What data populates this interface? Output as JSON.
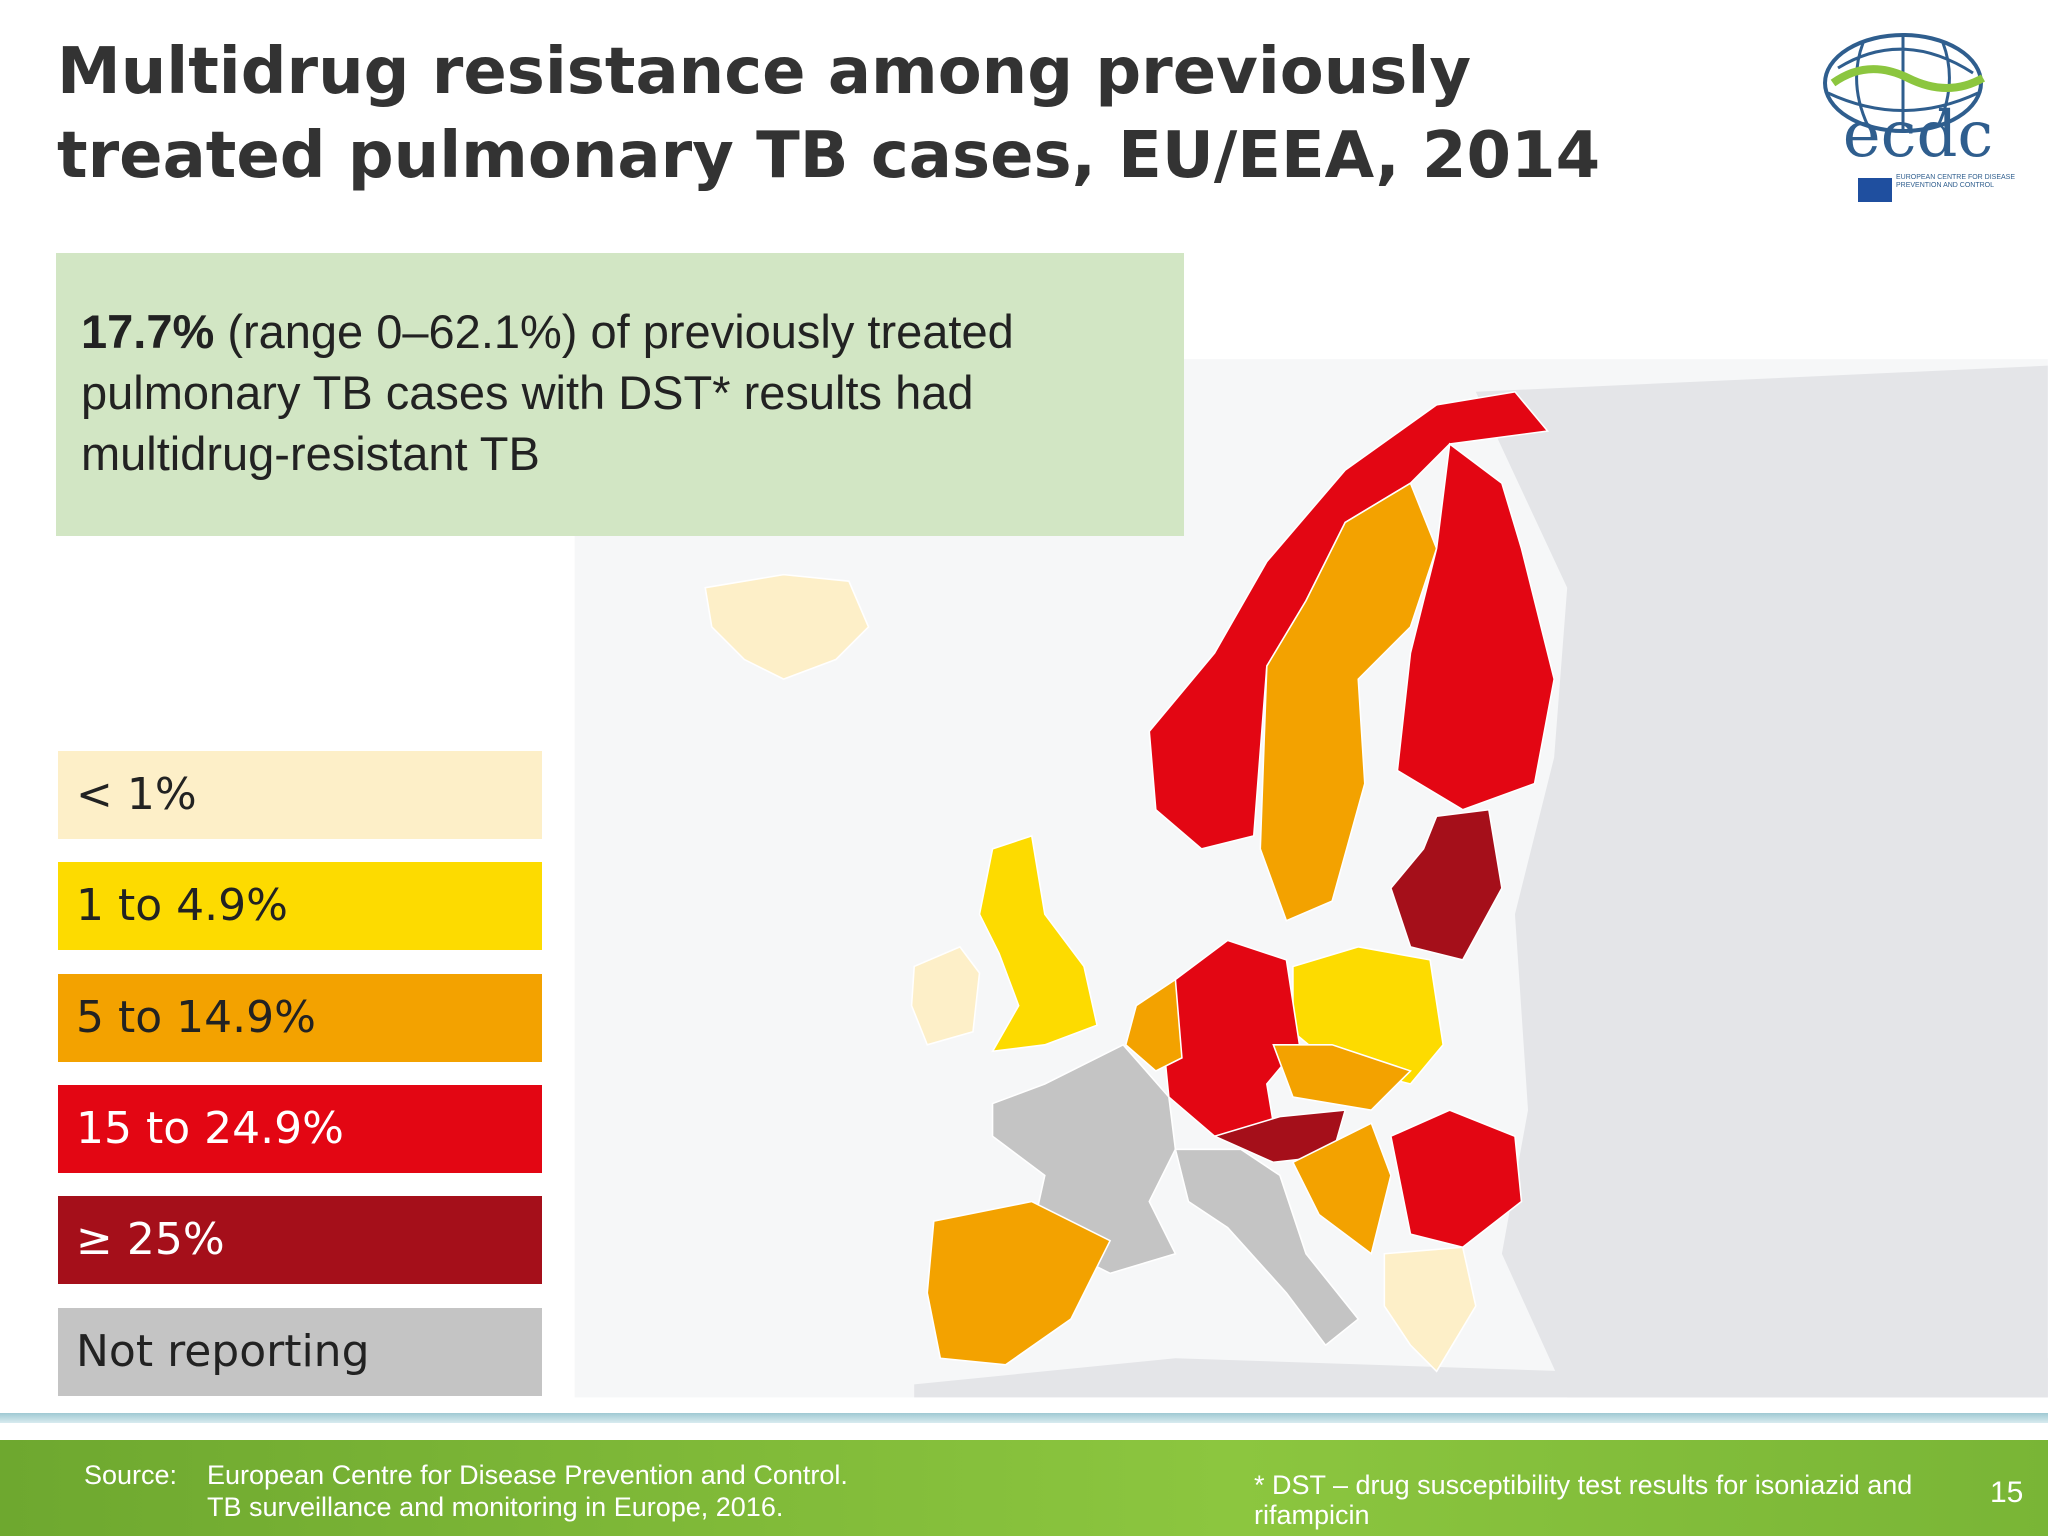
{
  "header": {
    "title_lines": [
      "Multidrug resistance among previously",
      "treated pulmonary TB cases, EU/EEA, 2014"
    ],
    "logo": {
      "text": "ecdc",
      "subtext": "EUROPEAN CENTRE FOR DISEASE PREVENTION AND CONTROL"
    }
  },
  "callout": {
    "highlight": "17.7%",
    "text": " (range 0–62.1%) of previously treated pulmonary TB cases with DST* results had multidrug-resistant TB"
  },
  "legend": {
    "items": [
      {
        "label": "< 1%",
        "color": "#fdefc8"
      },
      {
        "label": "1 to 4.9%",
        "color": "#fddb00"
      },
      {
        "label": "5 to 14.9%",
        "color": "#f3a200"
      },
      {
        "label": "15 to 24.9%",
        "color": "#e30613"
      },
      {
        "label": "≥ 25%",
        "color": "#a50f1a"
      },
      {
        "label": "Not reporting",
        "color": "#c4c4c4"
      }
    ]
  },
  "footer": {
    "source_label": "Source:",
    "source_lines": [
      "European Centre for Disease Prevention and Control.",
      "TB surveillance and monitoring in Europe, 2016."
    ],
    "footnote": "* DST – drug susceptibility test results for isoniazid and rifampicin",
    "page_number": "15"
  }
}
